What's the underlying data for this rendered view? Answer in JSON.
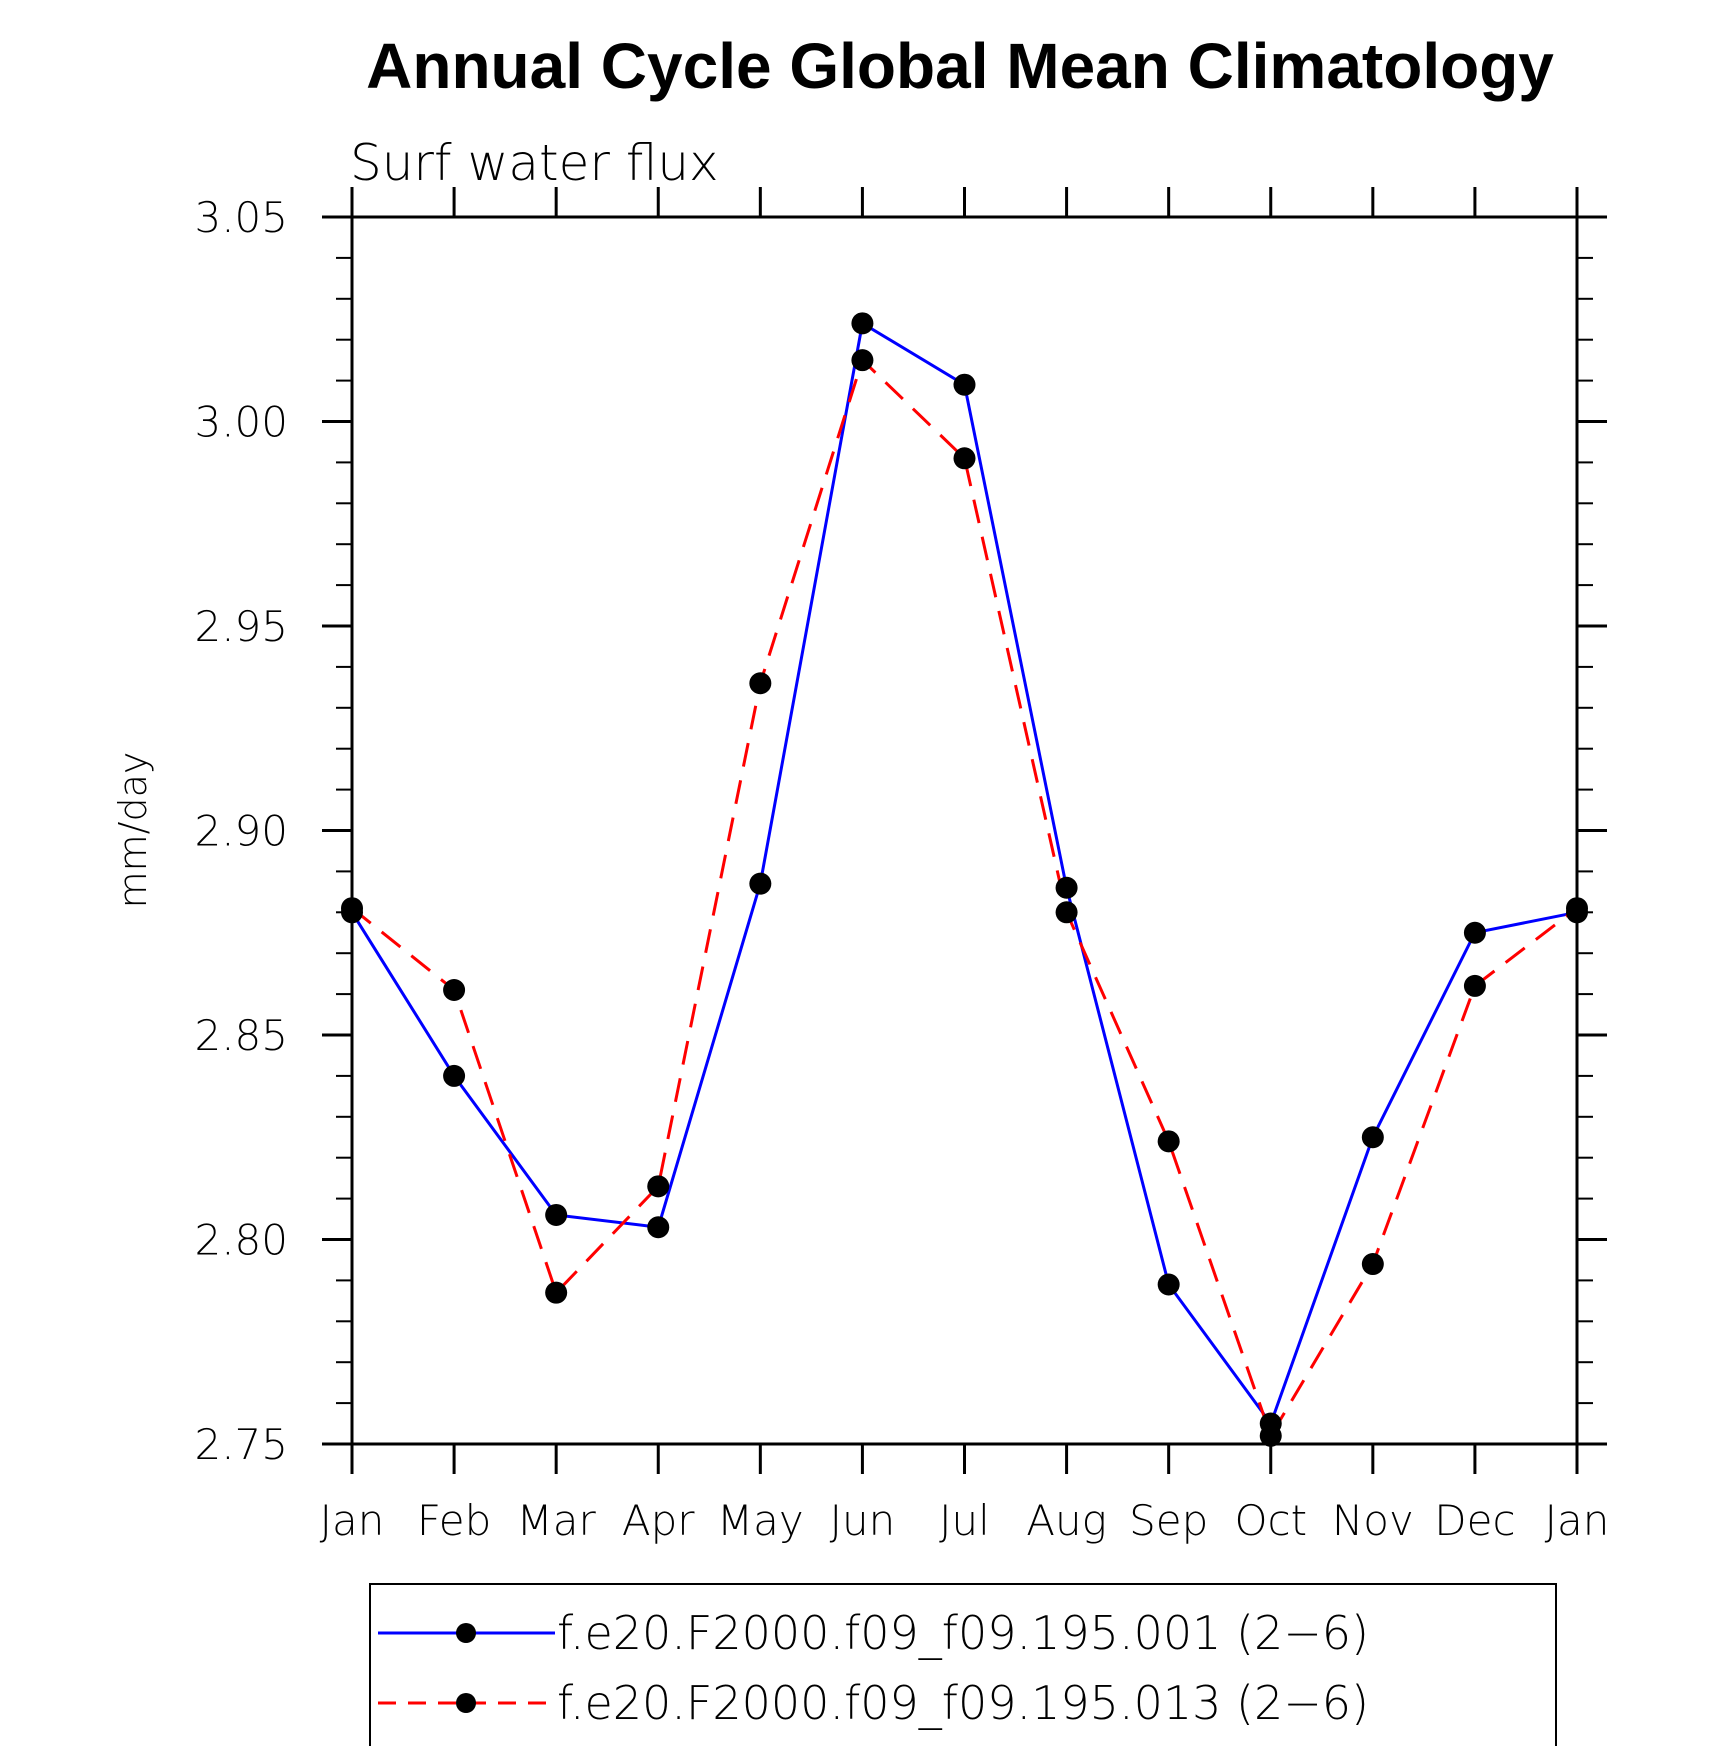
{
  "chart_data": {
    "type": "line",
    "title": "Annual Cycle Global Mean Climatology",
    "subtitle": "Surf water flux",
    "xlabel": "",
    "ylabel": "mm/day",
    "ylim": [
      2.75,
      3.05
    ],
    "yticks": [
      "2.75",
      "2.80",
      "2.85",
      "2.90",
      "2.95",
      "3.00",
      "3.05"
    ],
    "categories": [
      "Jan",
      "Feb",
      "Mar",
      "Apr",
      "May",
      "Jun",
      "Jul",
      "Aug",
      "Sep",
      "Oct",
      "Nov",
      "Dec",
      "Jan"
    ],
    "grid": false,
    "legend_position": "bottom",
    "series": [
      {
        "name": "f.e20.F2000.f09_f09.195.001 (2−6)",
        "color": "#0000ff",
        "dash": "solid",
        "values": [
          2.88,
          2.84,
          2.806,
          2.803,
          2.887,
          3.024,
          3.009,
          2.886,
          2.789,
          2.755,
          2.825,
          2.875,
          2.88
        ]
      },
      {
        "name": "f.e20.F2000.f09_f09.195.013 (2−6)",
        "color": "#ff0000",
        "dash": "dashed",
        "values": [
          2.881,
          2.861,
          2.787,
          2.813,
          2.936,
          3.015,
          2.991,
          2.88,
          2.824,
          2.752,
          2.794,
          2.862,
          2.881
        ]
      }
    ]
  }
}
